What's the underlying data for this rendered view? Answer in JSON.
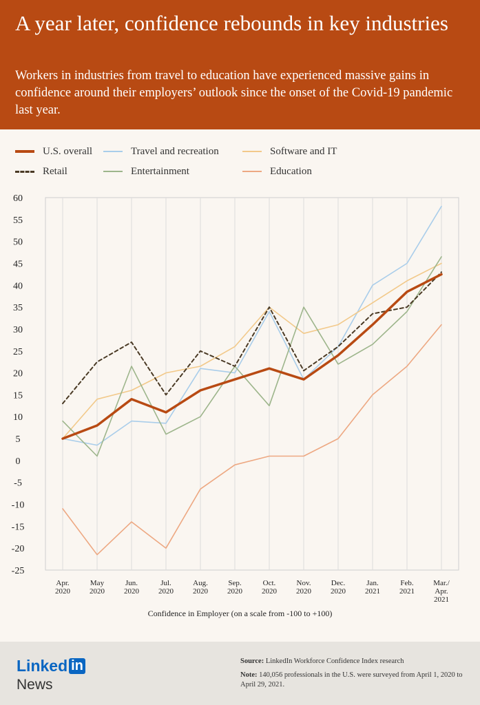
{
  "header": {
    "title": "A year later, confidence rebounds in key industries",
    "subtitle": "Workers in industries from travel to education have experienced massive gains in confidence around their employers’ outlook since the onset of the Covid-19 pandemic last year."
  },
  "legend": [
    {
      "label": "U.S. overall"
    },
    {
      "label": "Travel and recreation"
    },
    {
      "label": "Software and IT"
    },
    {
      "label": "Retail"
    },
    {
      "label": "Entertainment"
    },
    {
      "label": "Education"
    }
  ],
  "chart_data": {
    "type": "line",
    "xlabel": "Confidence in Employer (on a scale from -100 to +100)",
    "ylabel": "",
    "ylim": [
      -25,
      60
    ],
    "yticks": [
      60,
      55,
      50,
      45,
      40,
      35,
      30,
      25,
      20,
      15,
      10,
      5,
      0,
      -5,
      -10,
      -15,
      -20,
      -25
    ],
    "categories": [
      [
        "Apr.",
        "2020"
      ],
      [
        "May",
        "2020"
      ],
      [
        "Jun.",
        "2020"
      ],
      [
        "Jul.",
        "2020"
      ],
      [
        "Aug.",
        "2020"
      ],
      [
        "Sep.",
        "2020"
      ],
      [
        "Oct.",
        "2020"
      ],
      [
        "Nov.",
        "2020"
      ],
      [
        "Dec.",
        "2020"
      ],
      [
        "Jan.",
        "2021"
      ],
      [
        "Feb.",
        "2021"
      ],
      [
        "Mar./",
        "Apr.",
        "2021"
      ]
    ],
    "grid": true,
    "series": [
      {
        "name": "Travel and recreation",
        "color": "#a9cdea",
        "dash": "",
        "values": [
          5,
          3.5,
          9,
          8.5,
          21,
          20,
          34,
          18.5,
          26,
          40,
          45,
          58
        ]
      },
      {
        "name": "Software and IT",
        "color": "#f2c98a",
        "dash": "",
        "values": [
          5,
          14,
          16,
          20,
          21.5,
          26,
          35,
          29,
          31,
          36,
          41,
          45
        ]
      },
      {
        "name": "Entertainment",
        "color": "#9db58b",
        "dash": "",
        "values": [
          9,
          1,
          21.5,
          6,
          10,
          21.5,
          12.5,
          35,
          22,
          26.5,
          34,
          46.5
        ]
      },
      {
        "name": "Education",
        "color": "#eda882",
        "dash": "",
        "values": [
          -11,
          -21.5,
          -14,
          -20,
          -6.5,
          -1,
          1,
          1,
          5,
          15,
          21.5,
          31
        ]
      },
      {
        "name": "Retail",
        "color": "#4a3a25",
        "dash": "5,4",
        "values": [
          13,
          22.5,
          27,
          15,
          25,
          21.5,
          35,
          20.5,
          26,
          33.5,
          35,
          43
        ]
      },
      {
        "name": "U.S. overall",
        "color": "#b84a13",
        "dash": "",
        "values": [
          5,
          8,
          14,
          11,
          16,
          18.5,
          21,
          18.5,
          24,
          31,
          38.5,
          42.5
        ]
      }
    ]
  },
  "footer": {
    "logo_word": "Linked",
    "logo_in": "in",
    "logo_news": "News",
    "source_label": "Source:",
    "source_text": " LinkedIn Workforce Confidence Index research",
    "note_label": "Note:",
    "note_text": " 140,056 professionals in the U.S. were surveyed from April 1, 2020 to April 29, 2021."
  }
}
